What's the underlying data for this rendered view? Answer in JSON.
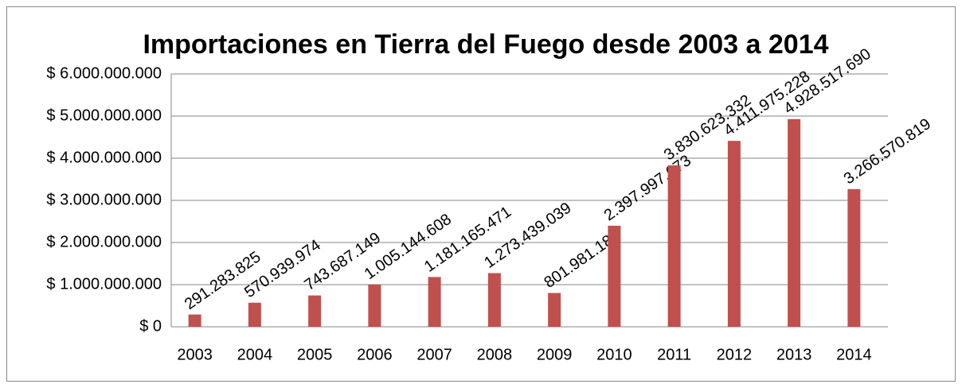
{
  "chart_data": {
    "type": "bar",
    "title": "Importaciones en Tierra del Fuego desde 2003 a 2014",
    "categories": [
      "2003",
      "2004",
      "2005",
      "2006",
      "2007",
      "2008",
      "2009",
      "2010",
      "2011",
      "2012",
      "2013",
      "2014"
    ],
    "values": [
      291283825,
      570939974,
      743687149,
      1005144608,
      1181165471,
      1273439039,
      801981181,
      2397997673,
      3830623332,
      4411975228,
      4928517690,
      3266570819
    ],
    "value_labels": [
      "291.283.825",
      "570.939.974",
      "743.687.149",
      "1.005.144.608",
      "1.181.165.471",
      "1.273.439.039",
      "801.981.181",
      "2.397.997.673",
      "3.830.623.332",
      "4.411.975.228",
      "4.928.517.690",
      "3.266.570.819"
    ],
    "color": "#c0504d",
    "ylim": [
      0,
      6000000000
    ],
    "yticks": [
      {
        "value": 0,
        "label": "$ 0"
      },
      {
        "value": 1000000000,
        "label": "$ 1.000.000.000"
      },
      {
        "value": 2000000000,
        "label": "$ 2.000.000.000"
      },
      {
        "value": 3000000000,
        "label": "$ 3.000.000.000"
      },
      {
        "value": 4000000000,
        "label": "$ 4.000.000.000"
      },
      {
        "value": 5000000000,
        "label": "$ 5.000.000.000"
      },
      {
        "value": 6000000000,
        "label": "$ 6.000.000.000"
      }
    ],
    "grid": true
  }
}
